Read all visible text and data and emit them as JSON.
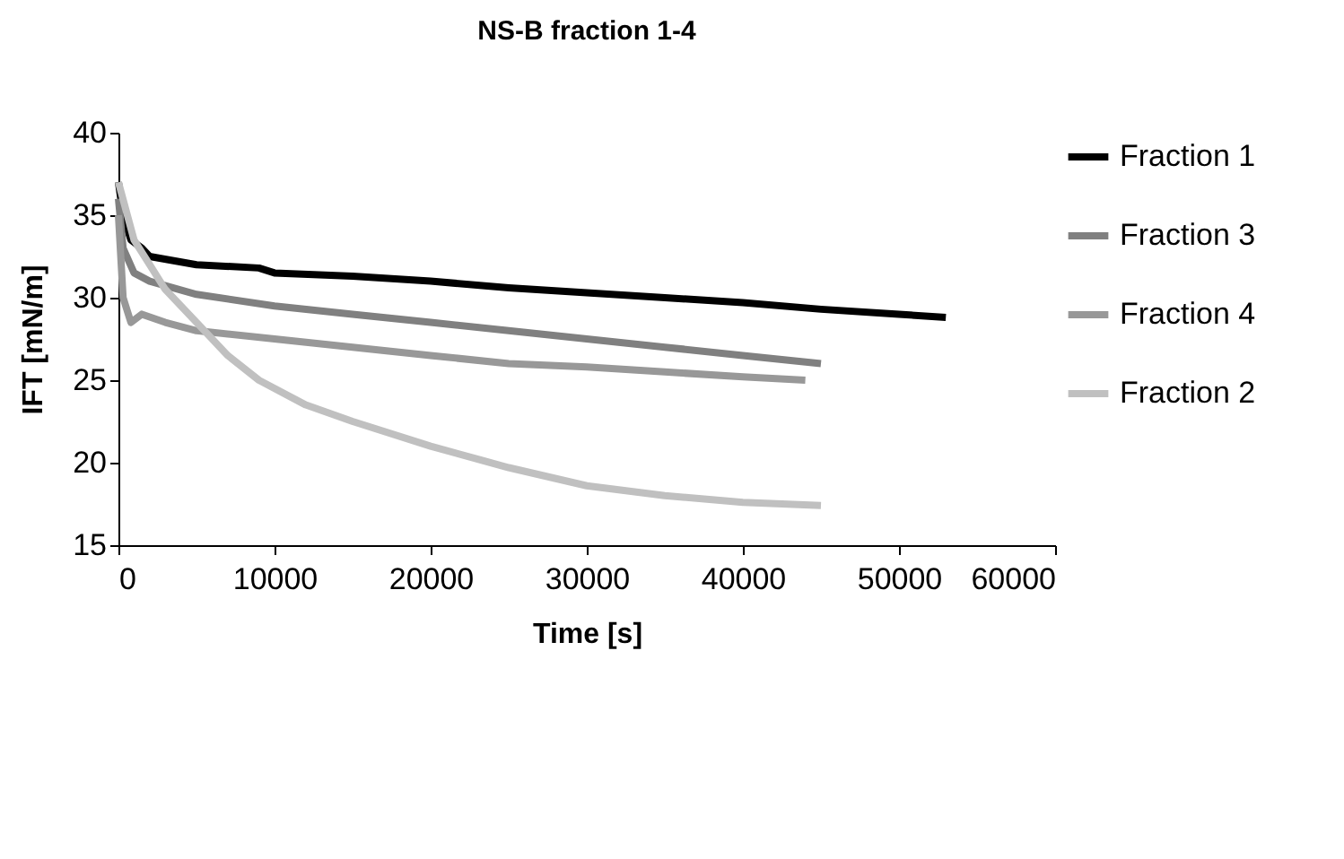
{
  "chart_data": {
    "type": "line",
    "title": "NS-B fraction 1-4",
    "xlabel": "Time [s]",
    "ylabel": "IFT [mN/m]",
    "xlim": [
      0,
      60000
    ],
    "xticks": [
      0,
      10000,
      20000,
      30000,
      40000,
      50000,
      60000
    ],
    "ylim": [
      15,
      40
    ],
    "yticks": [
      15,
      20,
      25,
      30,
      35,
      40
    ],
    "grid": false,
    "legend": "right",
    "marker": "none",
    "line_style": "solid",
    "series": [
      {
        "name": "Fraction 1",
        "color": "#000000",
        "x": [
          0,
          300,
          800,
          1500,
          2000,
          5000,
          9000,
          10000,
          15000,
          20000,
          25000,
          30000,
          35000,
          40000,
          45000,
          50000,
          53000
        ],
        "values": [
          37,
          35,
          33.5,
          33,
          32.5,
          32,
          31.8,
          31.5,
          31.3,
          31,
          30.6,
          30.3,
          30,
          29.7,
          29.3,
          29,
          28.8
        ]
      },
      {
        "name": "Fraction 3",
        "color": "#808080",
        "x": [
          0,
          300,
          1000,
          2000,
          5000,
          10000,
          15000,
          20000,
          25000,
          30000,
          35000,
          40000,
          45000
        ],
        "values": [
          36,
          33,
          31.5,
          31,
          30.2,
          29.5,
          29,
          28.5,
          28,
          27.5,
          27,
          26.5,
          26
        ]
      },
      {
        "name": "Fraction 4",
        "color": "#989898",
        "x": [
          0,
          300,
          800,
          1500,
          3000,
          5000,
          10000,
          15000,
          20000,
          25000,
          30000,
          35000,
          40000,
          44000
        ],
        "values": [
          35,
          30,
          28.5,
          29,
          28.5,
          28,
          27.5,
          27,
          26.5,
          26,
          25.8,
          25.5,
          25.2,
          25
        ]
      },
      {
        "name": "Fraction 2",
        "color": "#c0c0c0",
        "x": [
          0,
          1000,
          2000,
          3000,
          5000,
          7000,
          9000,
          12000,
          15000,
          20000,
          25000,
          30000,
          35000,
          40000,
          45000
        ],
        "values": [
          37,
          33.5,
          32,
          30.5,
          28.5,
          26.5,
          25,
          23.5,
          22.5,
          21,
          19.7,
          18.6,
          18,
          17.6,
          17.4
        ]
      }
    ]
  }
}
